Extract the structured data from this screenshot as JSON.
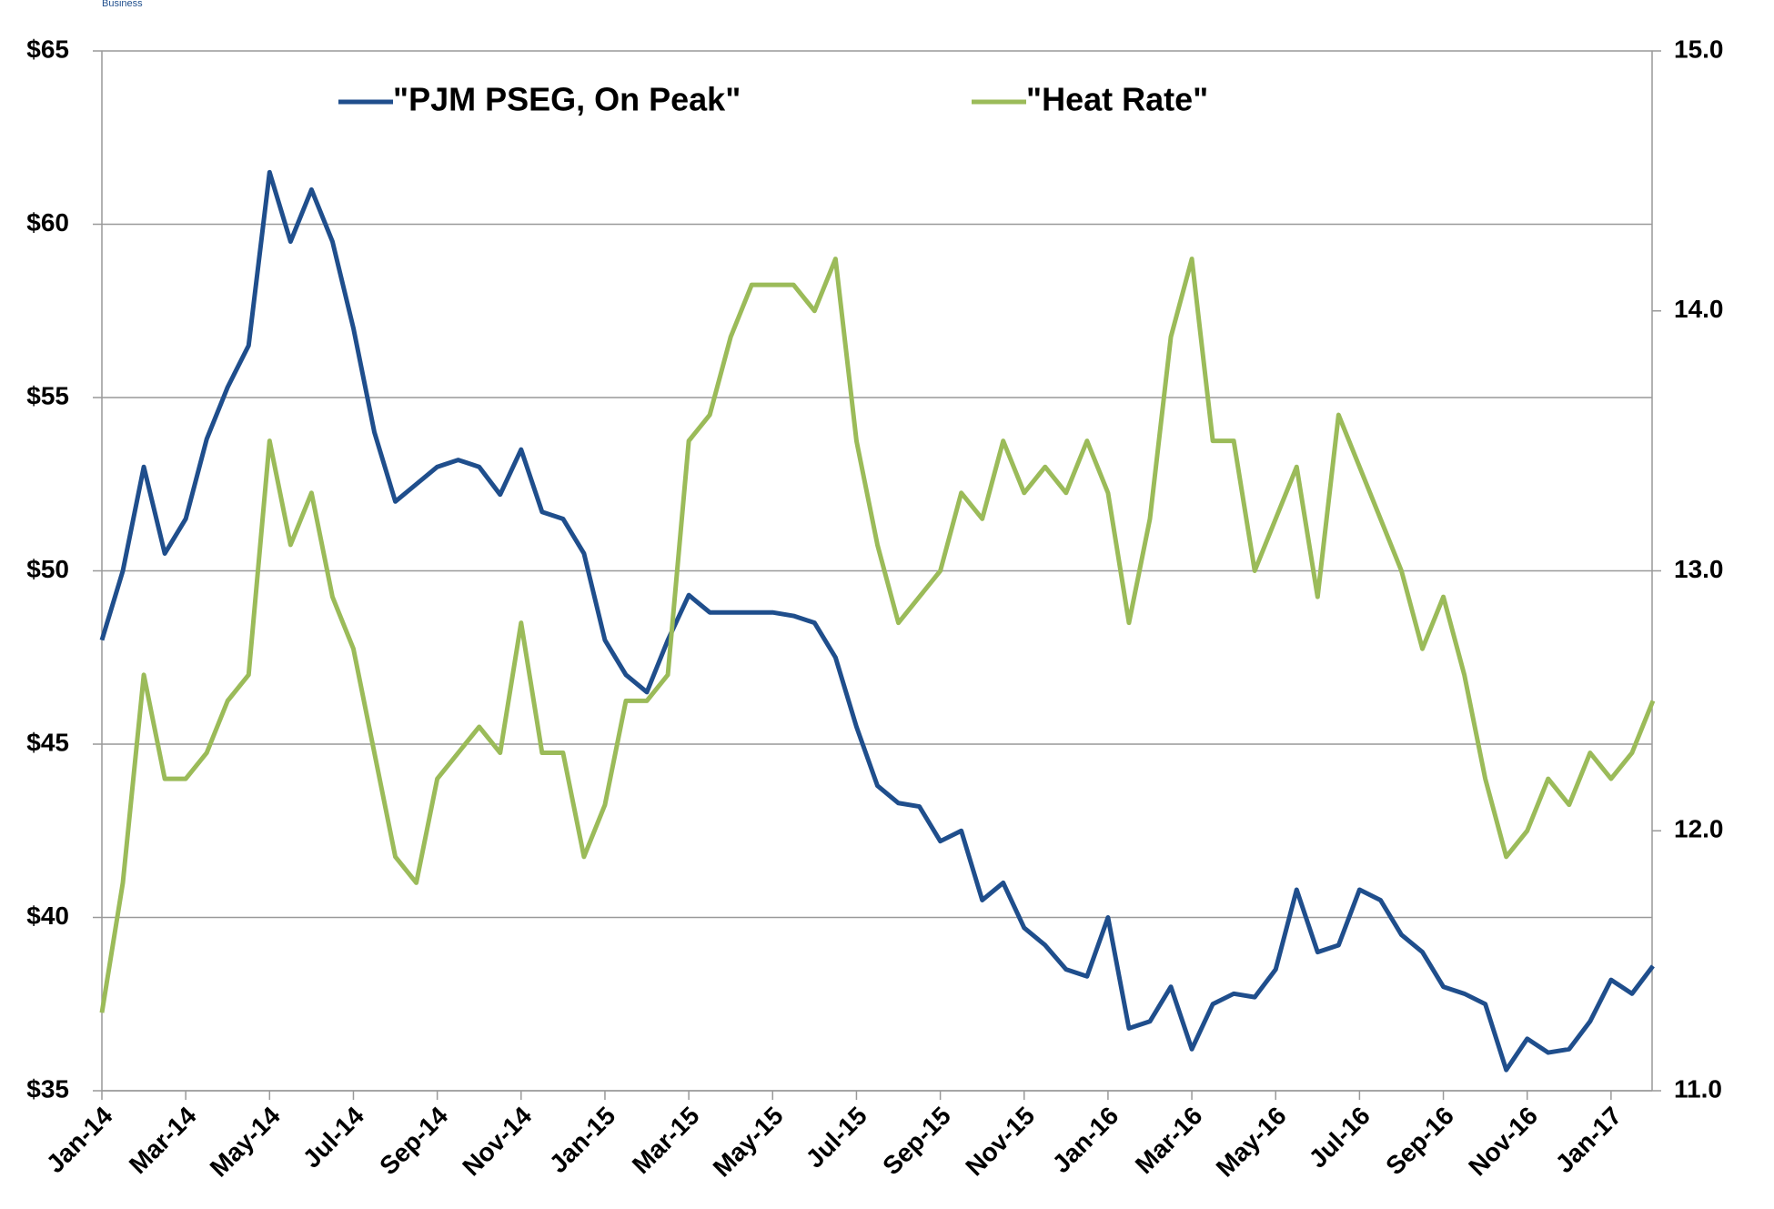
{
  "logo_text": "Business",
  "chart_data": {
    "type": "line",
    "categories": [
      "Jan-14",
      null,
      null,
      null,
      "Mar-14",
      null,
      null,
      null,
      "May-14",
      null,
      null,
      null,
      "Jul-14",
      null,
      null,
      null,
      "Sep-14",
      null,
      null,
      null,
      "Nov-14",
      null,
      null,
      null,
      "Jan-15",
      null,
      null,
      null,
      "Mar-15",
      null,
      null,
      null,
      "May-15",
      null,
      null,
      null,
      "Jul-15",
      null,
      null,
      null,
      "Sep-15",
      null,
      null,
      null,
      "Nov-15",
      null,
      null,
      null,
      "Jan-16",
      null,
      null,
      null,
      "Mar-16",
      null,
      null,
      null,
      "May-16",
      null,
      null,
      null,
      "Jul-16",
      null,
      null,
      null,
      "Sep-16",
      null,
      null,
      null,
      "Nov-16",
      null,
      null,
      null,
      "Jan-17",
      null,
      null
    ],
    "series": [
      {
        "name": "\"PJM PSEG, On Peak\"",
        "color": "#1f4e8c",
        "values": [
          48,
          50,
          53,
          50.5,
          51.5,
          53.8,
          55.3,
          56.5,
          61.5,
          59.5,
          61,
          59.5,
          57,
          54,
          52,
          52.5,
          53,
          53.2,
          53,
          52.2,
          53.5,
          51.7,
          51.5,
          50.5,
          48,
          47,
          46.5,
          48,
          49.3,
          48.8,
          48.8,
          48.8,
          48.8,
          48.7,
          48.5,
          47.5,
          45.5,
          43.8,
          43.3,
          43.2,
          42.2,
          42.5,
          40.5,
          41,
          39.7,
          39.2,
          38.5,
          38.3,
          40,
          36.8,
          37,
          38,
          36.2,
          37.5,
          37.8,
          37.7,
          38.5,
          40.8,
          39,
          39.2,
          40.8,
          40.5,
          39.5,
          39,
          38,
          37.8,
          37.5,
          35.6,
          36.5,
          36.1,
          36.2,
          37,
          38.2,
          37.8,
          38.6
        ]
      },
      {
        "name": "\"Heat Rate\"",
        "color": "#9bbb59",
        "axis": "y2",
        "values": [
          11.3,
          11.8,
          12.6,
          12.2,
          12.2,
          12.3,
          12.5,
          12.6,
          13.5,
          13.1,
          13.3,
          12.9,
          12.7,
          12.3,
          11.9,
          11.8,
          12.2,
          12.3,
          12.4,
          12.3,
          12.8,
          12.3,
          12.3,
          11.9,
          12.1,
          12.5,
          12.5,
          12.6,
          13.5,
          13.6,
          13.9,
          14.1,
          14.1,
          14.1,
          14,
          14.2,
          13.5,
          13.1,
          12.8,
          12.9,
          13,
          13.3,
          13.2,
          13.5,
          13.3,
          13.4,
          13.3,
          13.5,
          13.3,
          12.8,
          13.2,
          13.9,
          14.2,
          13.5,
          13.5,
          13,
          13.2,
          13.4,
          12.9,
          13.6,
          13.4,
          13.2,
          13,
          12.7,
          12.9,
          12.6,
          12.2,
          11.9,
          12,
          12.2,
          12.1,
          12.3,
          12.2,
          12.3,
          12.5
        ]
      }
    ],
    "ylim": [
      35,
      65
    ],
    "yticks": [
      {
        "value": 35,
        "label": "$35"
      },
      {
        "value": 40,
        "label": "$40"
      },
      {
        "value": 45,
        "label": "$45"
      },
      {
        "value": 50,
        "label": "$50"
      },
      {
        "value": 55,
        "label": "$55"
      },
      {
        "value": 60,
        "label": "$60"
      },
      {
        "value": 65,
        "label": "$65"
      }
    ],
    "y2lim": [
      11,
      15
    ],
    "y2ticks": [
      {
        "value": 11,
        "label": "11.0"
      },
      {
        "value": 12,
        "label": "12.0"
      },
      {
        "value": 13,
        "label": "13.0"
      },
      {
        "value": 14,
        "label": "14.0"
      },
      {
        "value": 15,
        "label": "15.0"
      }
    ],
    "grid": true,
    "legend": "top"
  }
}
